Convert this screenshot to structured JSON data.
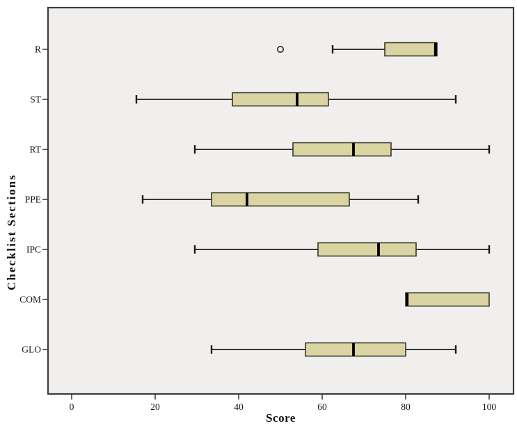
{
  "figure": {
    "background": "#ffffff"
  },
  "chart_data": {
    "type": "boxplot",
    "orientation": "horizontal",
    "title": "",
    "xlabel": "Score",
    "ylabel": "Checklist Sections",
    "grid": false,
    "legend": null,
    "x_axis": {
      "min": 0,
      "max": 100,
      "ticks": [
        0,
        20,
        40,
        60,
        80,
        100
      ]
    },
    "categories": [
      "R",
      "ST",
      "RT",
      "PPE",
      "IPC",
      "COM",
      "GLO"
    ],
    "boxes": [
      {
        "category": "R",
        "whisker_low": 62.5,
        "q1": 75,
        "median": 87.5,
        "q3": 87.5,
        "whisker_high": 87.5,
        "outliers": [
          50
        ]
      },
      {
        "category": "ST",
        "whisker_low": 15.5,
        "q1": 38.5,
        "median": 54,
        "q3": 61.5,
        "whisker_high": 92,
        "outliers": []
      },
      {
        "category": "RT",
        "whisker_low": 29.5,
        "q1": 53,
        "median": 67.5,
        "q3": 76.5,
        "whisker_high": 100,
        "outliers": []
      },
      {
        "category": "PPE",
        "whisker_low": 17,
        "q1": 33.5,
        "median": 42,
        "q3": 66.5,
        "whisker_high": 83,
        "outliers": []
      },
      {
        "category": "IPC",
        "whisker_low": 29.5,
        "q1": 59,
        "median": 73.5,
        "q3": 82.5,
        "whisker_high": 100,
        "outliers": []
      },
      {
        "category": "COM",
        "whisker_low": 80,
        "q1": 80,
        "median": 80,
        "q3": 100,
        "whisker_high": 100,
        "outliers": []
      },
      {
        "category": "GLO",
        "whisker_low": 33.5,
        "q1": 56,
        "median": 67.5,
        "q3": 80,
        "whisker_high": 92,
        "outliers": []
      }
    ],
    "colors": {
      "plot_bg": "#f0efed",
      "frame": "#3d3d3d",
      "box_fill": "#d9d4a2",
      "box_border": "#2b2a1f",
      "median": "#000000",
      "whisker": "#1c1c1c",
      "outlier": "#222222",
      "text": "#141414"
    }
  }
}
